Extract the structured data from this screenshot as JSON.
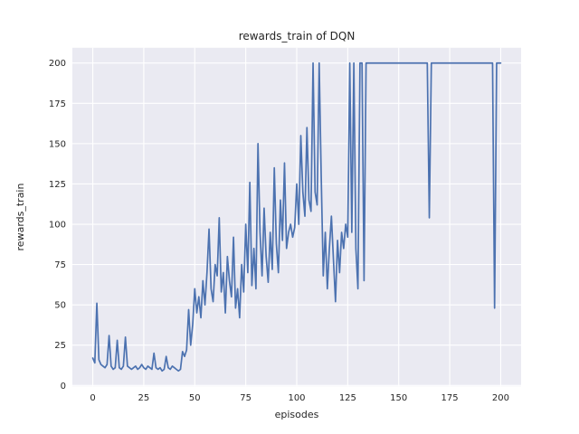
{
  "chart_data": {
    "type": "line",
    "title": "rewards_train of DQN",
    "xlabel": "episodes",
    "ylabel": "rewards_train",
    "legend": "none",
    "grid": true,
    "xlim": [
      -10,
      210
    ],
    "ylim": [
      -0.5,
      209.5
    ],
    "x_ticks": [
      0,
      25,
      50,
      75,
      100,
      125,
      150,
      175,
      200
    ],
    "y_ticks": [
      0,
      25,
      50,
      75,
      100,
      125,
      150,
      175,
      200
    ],
    "x_note": "x value = episode index starting at 0",
    "series": [
      {
        "name": "rewards_train",
        "values": [
          17,
          14,
          51,
          16,
          13,
          12,
          11,
          13,
          31,
          12,
          10,
          11,
          28,
          11,
          10,
          12,
          30,
          12,
          11,
          10,
          11,
          12,
          10,
          11,
          13,
          11,
          10,
          12,
          11,
          10,
          20,
          11,
          10,
          11,
          9,
          10,
          18,
          11,
          10,
          12,
          11,
          10,
          9,
          10,
          21,
          18,
          22,
          47,
          25,
          38,
          60,
          45,
          55,
          42,
          65,
          50,
          70,
          97,
          60,
          52,
          75,
          68,
          104,
          58,
          70,
          45,
          80,
          65,
          55,
          92,
          48,
          60,
          42,
          75,
          58,
          100,
          70,
          126,
          62,
          85,
          60,
          150,
          95,
          68,
          110,
          80,
          64,
          95,
          72,
          135,
          88,
          70,
          115,
          90,
          138,
          85,
          95,
          100,
          92,
          98,
          125,
          100,
          155,
          120,
          105,
          160,
          115,
          108,
          200,
          120,
          112,
          200,
          130,
          68,
          95,
          60,
          85,
          105,
          78,
          52,
          90,
          70,
          95,
          85,
          100,
          92,
          200,
          95,
          200,
          85,
          60,
          200,
          200,
          65,
          200,
          200,
          200,
          200,
          200,
          200,
          200,
          200,
          200,
          200,
          200,
          200,
          200,
          200,
          200,
          200,
          200,
          200,
          200,
          200,
          200,
          200,
          200,
          200,
          200,
          200,
          200,
          200,
          200,
          200,
          200,
          104,
          200,
          200,
          200,
          200,
          200,
          200,
          200,
          200,
          200,
          200,
          200,
          200,
          200,
          200,
          200,
          200,
          200,
          200,
          200,
          200,
          200,
          200,
          200,
          200,
          200,
          200,
          200,
          200,
          200,
          200,
          200,
          48,
          200,
          200,
          200
        ]
      }
    ],
    "colors": {
      "line": "#4c72b0",
      "axes_background": "#eaeaf2",
      "grid": "#ffffff",
      "text": "#262626",
      "figure_background": "#ffffff"
    }
  }
}
